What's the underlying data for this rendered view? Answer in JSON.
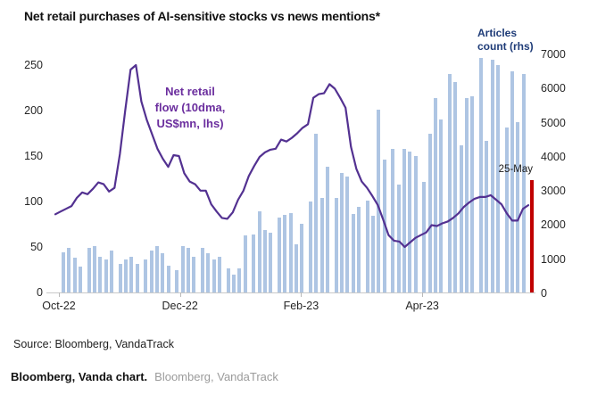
{
  "title": "Net retail purchases of AI-sensitive stocks vs news mentions*",
  "source_line": "Source: Bloomberg, VandaTrack",
  "caption": {
    "bold": "Bloomberg, Vanda chart.",
    "gray": "Bloomberg, VandaTrack"
  },
  "colors": {
    "bar": "#aec5e3",
    "line": "#533191",
    "highlight_bar": "#c00000",
    "articles_label": "#1f3c78",
    "line_label": "#6b2e9e",
    "axis_text": "#262626"
  },
  "chart_data": {
    "type": "combo (bar + line)",
    "title": "Net retail purchases of AI-sensitive stocks vs news mentions*",
    "x_axis": {
      "tick_labels": [
        "Oct-22",
        "Dec-22",
        "Feb-23",
        "Apr-23"
      ],
      "range_note": "late Sep 2022 to 25 May 2023"
    },
    "left_axis": {
      "ticks": [
        0,
        50,
        100,
        150,
        200,
        250
      ],
      "range": [
        0,
        250
      ],
      "series": "Net retail flow (10dma, US$mn)"
    },
    "right_axis": {
      "ticks": [
        0,
        1000,
        2000,
        3000,
        4000,
        5000,
        6000,
        7000
      ],
      "range": [
        0,
        7000
      ],
      "series": "Articles count"
    },
    "grid": "off",
    "legend": "annotations on chart",
    "annotations": {
      "line_label": [
        "Net retail",
        "flow (10dma,",
        "US$mn, lhs)"
      ],
      "bar_label": [
        "Articles",
        "count (rhs)"
      ],
      "date_label": "25-May"
    },
    "bar_series": {
      "name": "Articles count (rhs)",
      "axis": "right",
      "groups": [
        [
          1180,
          1320,
          1010,
          750
        ],
        [
          1320,
          1360,
          1050,
          970,
          1230
        ],
        [
          830,
          970,
          1050,
          830
        ],
        [
          970,
          1230,
          1360,
          1140,
          790
        ],
        [
          660,
          1360,
          1320,
          1050
        ],
        [
          1300,
          1140,
          970,
          1050
        ],
        [
          700,
          530,
          700,
          1670
        ],
        [
          1710,
          2370,
          1840,
          1750
        ],
        [
          2190,
          2280,
          2330,
          1400,
          2010
        ],
        [
          2670,
          4640,
          2760,
          3680
        ],
        [
          2760,
          3500,
          3400,
          2300,
          2500
        ],
        [
          2700,
          2250,
          5350,
          3900
        ],
        [
          4200,
          3150,
          4200,
          4120,
          4000
        ],
        [
          3250,
          4640,
          5700,
          5080
        ],
        [
          6400,
          6170,
          4300,
          5700,
          5740
        ],
        [
          6880,
          4430,
          6830,
          6660
        ],
        [
          4830,
          6480,
          5000,
          6400
        ]
      ]
    },
    "highlight_bar": {
      "label": "25-May",
      "value": 3300
    },
    "line_series": {
      "name": "Net retail flow (10dma, US$mn, lhs)",
      "axis": "left",
      "values": [
        86,
        89,
        92,
        95,
        104,
        110,
        108,
        114,
        121,
        119,
        111,
        115,
        152,
        200,
        245,
        250,
        210,
        190,
        174,
        158,
        147,
        138,
        151,
        150,
        131,
        122,
        119,
        112,
        112,
        97,
        89,
        82,
        81,
        88,
        102,
        112,
        128,
        139,
        149,
        154,
        157,
        158,
        168,
        166,
        170,
        175,
        181,
        185,
        214,
        218,
        219,
        229,
        224,
        214,
        203,
        160,
        136,
        122,
        115,
        106,
        96,
        80,
        63,
        57,
        56,
        50,
        55,
        60,
        63,
        66,
        74,
        73,
        76,
        78,
        82,
        87,
        94,
        99,
        103,
        105,
        105,
        107,
        102,
        97,
        87,
        79,
        79,
        92,
        96
      ]
    }
  }
}
